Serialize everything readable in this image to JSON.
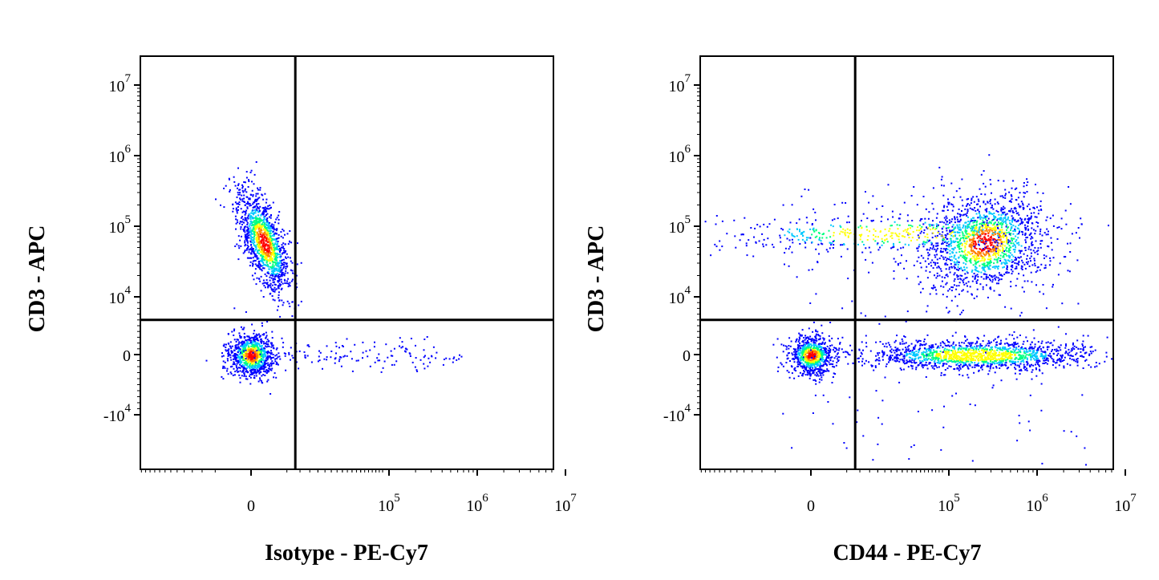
{
  "chart_data": [
    {
      "type": "scatter",
      "subtype": "flow-cytometry-density-dot-plot",
      "title": "",
      "xlabel": "Isotype - PE-Cy7",
      "ylabel": "CD3 - APC",
      "x_scale": "biexponential",
      "y_scale": "biexponential",
      "x_ticks": [
        {
          "value": 0,
          "base": "0",
          "exp": ""
        },
        {
          "value": 100000,
          "base": "10",
          "exp": "5"
        },
        {
          "value": 1000000,
          "base": "10",
          "exp": "6"
        },
        {
          "value": 10000000,
          "base": "10",
          "exp": "7"
        }
      ],
      "y_ticks": [
        {
          "value": -10000,
          "base": "-10",
          "exp": "4"
        },
        {
          "value": 0,
          "base": "0",
          "exp": ""
        },
        {
          "value": 10000,
          "base": "10",
          "exp": "4"
        },
        {
          "value": 100000,
          "base": "10",
          "exp": "5"
        },
        {
          "value": 1000000,
          "base": "10",
          "exp": "6"
        },
        {
          "value": 10000000,
          "base": "10",
          "exp": "7"
        }
      ],
      "quadrant_gate": {
        "x": 8000,
        "y": 6000
      },
      "populations": [
        {
          "x_center": 0,
          "y_center": 0,
          "density": "high"
        },
        {
          "x_center": 500,
          "y_center": 60000,
          "density": "high"
        }
      ],
      "color_scale": [
        "#0000ff",
        "#00c8ff",
        "#00ff80",
        "#ffff00",
        "#ff8000",
        "#ff0000"
      ],
      "grid": false,
      "legend": "none"
    },
    {
      "type": "scatter",
      "subtype": "flow-cytometry-density-dot-plot",
      "title": "",
      "xlabel": "CD44 - PE-Cy7",
      "ylabel": "CD3 - APC",
      "x_scale": "biexponential",
      "y_scale": "biexponential",
      "x_ticks": [
        {
          "value": 0,
          "base": "0",
          "exp": ""
        },
        {
          "value": 100000,
          "base": "10",
          "exp": "5"
        },
        {
          "value": 1000000,
          "base": "10",
          "exp": "6"
        },
        {
          "value": 10000000,
          "base": "10",
          "exp": "7"
        }
      ],
      "y_ticks": [
        {
          "value": -10000,
          "base": "-10",
          "exp": "4"
        },
        {
          "value": 0,
          "base": "0",
          "exp": ""
        },
        {
          "value": 10000,
          "base": "10",
          "exp": "4"
        },
        {
          "value": 100000,
          "base": "10",
          "exp": "5"
        },
        {
          "value": 1000000,
          "base": "10",
          "exp": "6"
        },
        {
          "value": 10000000,
          "base": "10",
          "exp": "7"
        }
      ],
      "quadrant_gate": {
        "x": 8000,
        "y": 6000
      },
      "populations": [
        {
          "x_center": 0,
          "y_center": 0,
          "density": "high"
        },
        {
          "x_center": 200000,
          "y_center": 0,
          "density": "medium"
        },
        {
          "x_center": 250000,
          "y_center": 60000,
          "density": "high"
        },
        {
          "x_center": 30000,
          "y_center": 80000,
          "density": "low"
        }
      ],
      "color_scale": [
        "#0000ff",
        "#00c8ff",
        "#00ff80",
        "#ffff00",
        "#ff8000",
        "#ff0000"
      ],
      "grid": false,
      "legend": "none"
    }
  ]
}
